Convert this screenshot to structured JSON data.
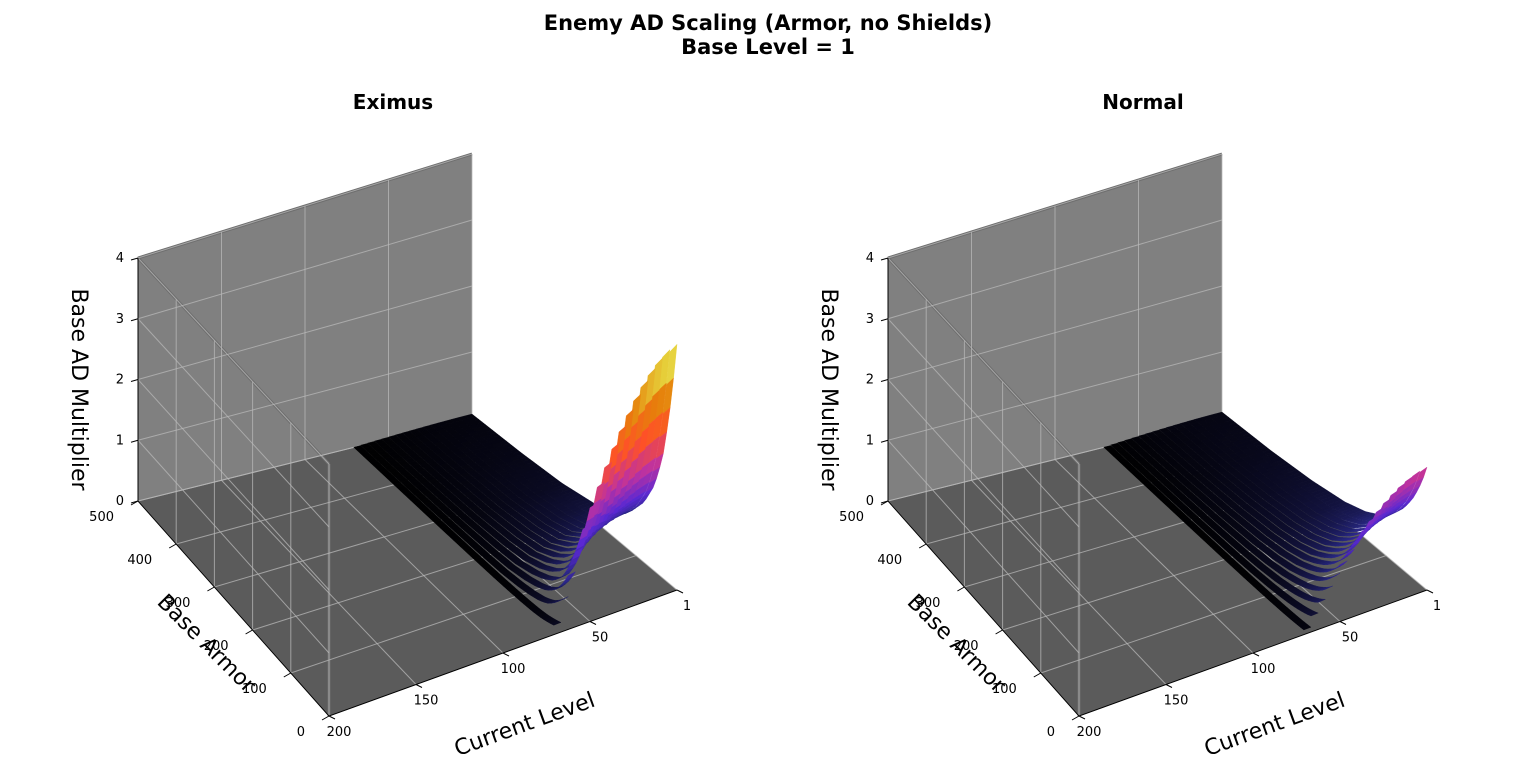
{
  "figure": {
    "title_line1": "Enemy AD Scaling (Armor, no Shields)",
    "title_line2": "Base Level = 1"
  },
  "colors": {
    "pane_back": "#808080",
    "pane_floor": "#5b5b5b",
    "surface_low": "#000000",
    "surface_mid": "#5b2ad0",
    "surface_high": "#ff5020",
    "surface_top": "#fffce0"
  },
  "chart_data": [
    {
      "type": "surface3d",
      "title": "Eximus",
      "xlabel": "Current Level",
      "ylabel": "Base Armor",
      "zlabel": "Base AD Multiplier",
      "x_ticks": [
        "1",
        "50",
        "100",
        "150",
        "200"
      ],
      "y_ticks": [
        "0",
        "100",
        "200",
        "300",
        "400",
        "500"
      ],
      "z_ticks": [
        "0",
        "1",
        "2",
        "3",
        "4"
      ],
      "xlim": [
        1,
        200
      ],
      "ylim": [
        0,
        500
      ],
      "zlim": [
        0,
        4
      ],
      "colormap": "CMRmap",
      "grid": true,
      "series": [
        {
          "values": [
            [
              0,
              3.9
            ],
            [
              10,
              3.2
            ],
            [
              20,
              2.6
            ],
            [
              35,
              1.9
            ],
            [
              55,
              1.35
            ],
            [
              80,
              0.95
            ],
            [
              110,
              0.65
            ],
            [
              150,
              0.4
            ],
            [
              200,
              0.27
            ],
            [
              280,
              0.16
            ],
            [
              380,
              0.1
            ],
            [
              500,
              0.06
            ]
          ]
        }
      ]
    },
    {
      "type": "surface3d",
      "title": "Normal",
      "xlabel": "Current Level",
      "ylabel": "Base Armor",
      "zlabel": "Base AD Multiplier",
      "x_ticks": [
        "1",
        "50",
        "100",
        "150",
        "200"
      ],
      "y_ticks": [
        "0",
        "100",
        "200",
        "300",
        "400",
        "500"
      ],
      "z_ticks": [
        "0",
        "1",
        "2",
        "3",
        "4"
      ],
      "xlim": [
        1,
        200
      ],
      "ylim": [
        0,
        500
      ],
      "zlim": [
        0,
        4
      ],
      "colormap": "CMRmap",
      "grid": true,
      "series": [
        {
          "values": [
            [
              0,
              1.95
            ],
            [
              10,
              1.7
            ],
            [
              20,
              1.5
            ],
            [
              35,
              1.25
            ],
            [
              55,
              1.0
            ],
            [
              80,
              0.78
            ],
            [
              110,
              0.58
            ],
            [
              150,
              0.42
            ],
            [
              200,
              0.3
            ],
            [
              280,
              0.2
            ],
            [
              380,
              0.13
            ],
            [
              500,
              0.09
            ]
          ]
        }
      ]
    }
  ]
}
